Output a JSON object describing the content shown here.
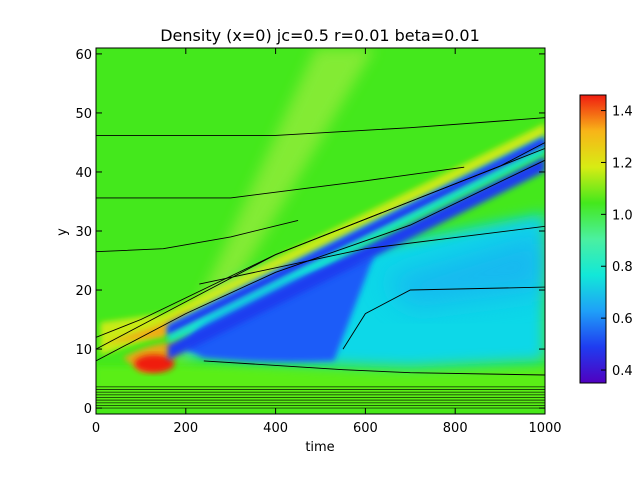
{
  "chart_data": {
    "type": "heatmap",
    "title": "Density (x=0) jc=0.5 r=0.01 beta=0.01",
    "xlabel": "time",
    "ylabel": "y",
    "xlim": [
      0,
      1000
    ],
    "ylim": [
      -1,
      61
    ],
    "x_ticks": [
      0,
      200,
      400,
      600,
      800,
      1000
    ],
    "y_ticks": [
      0,
      10,
      20,
      30,
      40,
      50,
      60
    ],
    "colorbar": {
      "range": [
        0.35,
        1.46
      ],
      "ticks": [
        "0.4",
        "0.6",
        "0.8",
        "1.0",
        "1.2",
        "1.4"
      ],
      "colors": [
        "#5000c0",
        "#1f3cf0",
        "#1fa0f8",
        "#12e8d8",
        "#4bf0a0",
        "#44e81c",
        "#d8ec14",
        "#f8b418",
        "#f01c10"
      ]
    },
    "regions": [
      {
        "name": "background",
        "value": 1.0,
        "color": "#44e81c"
      },
      {
        "name": "light-ray",
        "value": 1.05,
        "color": "#98ec3e",
        "t0": 170,
        "y0": 8,
        "t1": 580,
        "y1": 61
      },
      {
        "name": "shock-front",
        "value": 1.2,
        "color": "#d8ec14",
        "t0": 10,
        "y0": 13,
        "t1": 1000,
        "y1": 47
      },
      {
        "name": "high-density-peak",
        "value": 1.44,
        "color": "#f01c10",
        "t": 130,
        "y": 7.5
      },
      {
        "name": "depletion-band",
        "value": 0.38,
        "color": "#2030f0",
        "t0": 160,
        "y0": 12,
        "t1": 1000,
        "y1": 44
      },
      {
        "name": "depleted-region",
        "value": 0.55,
        "color": "#1f5cf8",
        "t": 330,
        "y": 10
      },
      {
        "name": "cyan-plateau",
        "value": 0.8,
        "color": "#10d8e8",
        "t": 800,
        "y": 14
      },
      {
        "name": "boundary-layer",
        "value": 0.95,
        "color": "#5aee18",
        "t": 600,
        "y": 3
      }
    ],
    "contours": [
      {
        "points": [
          [
            0,
            46.2
          ],
          [
            400,
            46.2
          ],
          [
            700,
            47.5
          ],
          [
            1000,
            49.2
          ]
        ]
      },
      {
        "points": [
          [
            0,
            35.6
          ],
          [
            300,
            35.6
          ],
          [
            600,
            38.5
          ],
          [
            820,
            40.8
          ]
        ]
      },
      {
        "points": [
          [
            0,
            26.5
          ],
          [
            150,
            27
          ],
          [
            300,
            29
          ],
          [
            450,
            31.8
          ]
        ]
      },
      {
        "points": [
          [
            0,
            12
          ],
          [
            100,
            15
          ],
          [
            400,
            26
          ],
          [
            700,
            35
          ],
          [
            900,
            41
          ],
          [
            1000,
            45
          ]
        ]
      },
      {
        "points": [
          [
            0,
            10
          ],
          [
            150,
            16
          ],
          [
            400,
            26
          ],
          [
            700,
            35
          ],
          [
            1000,
            44
          ]
        ]
      },
      {
        "points": [
          [
            0,
            8
          ],
          [
            200,
            16
          ],
          [
            400,
            23
          ],
          [
            700,
            31
          ],
          [
            1000,
            42
          ]
        ]
      },
      {
        "points": [
          [
            230,
            21
          ],
          [
            600,
            27
          ],
          [
            1000,
            30.8
          ]
        ]
      },
      {
        "points": [
          [
            240,
            8
          ],
          [
            550,
            6.5
          ],
          [
            700,
            6
          ],
          [
            1000,
            5.6
          ]
        ]
      },
      {
        "points": [
          [
            550,
            10
          ],
          [
            600,
            16
          ],
          [
            700,
            20
          ],
          [
            1000,
            20.5
          ]
        ]
      }
    ]
  }
}
